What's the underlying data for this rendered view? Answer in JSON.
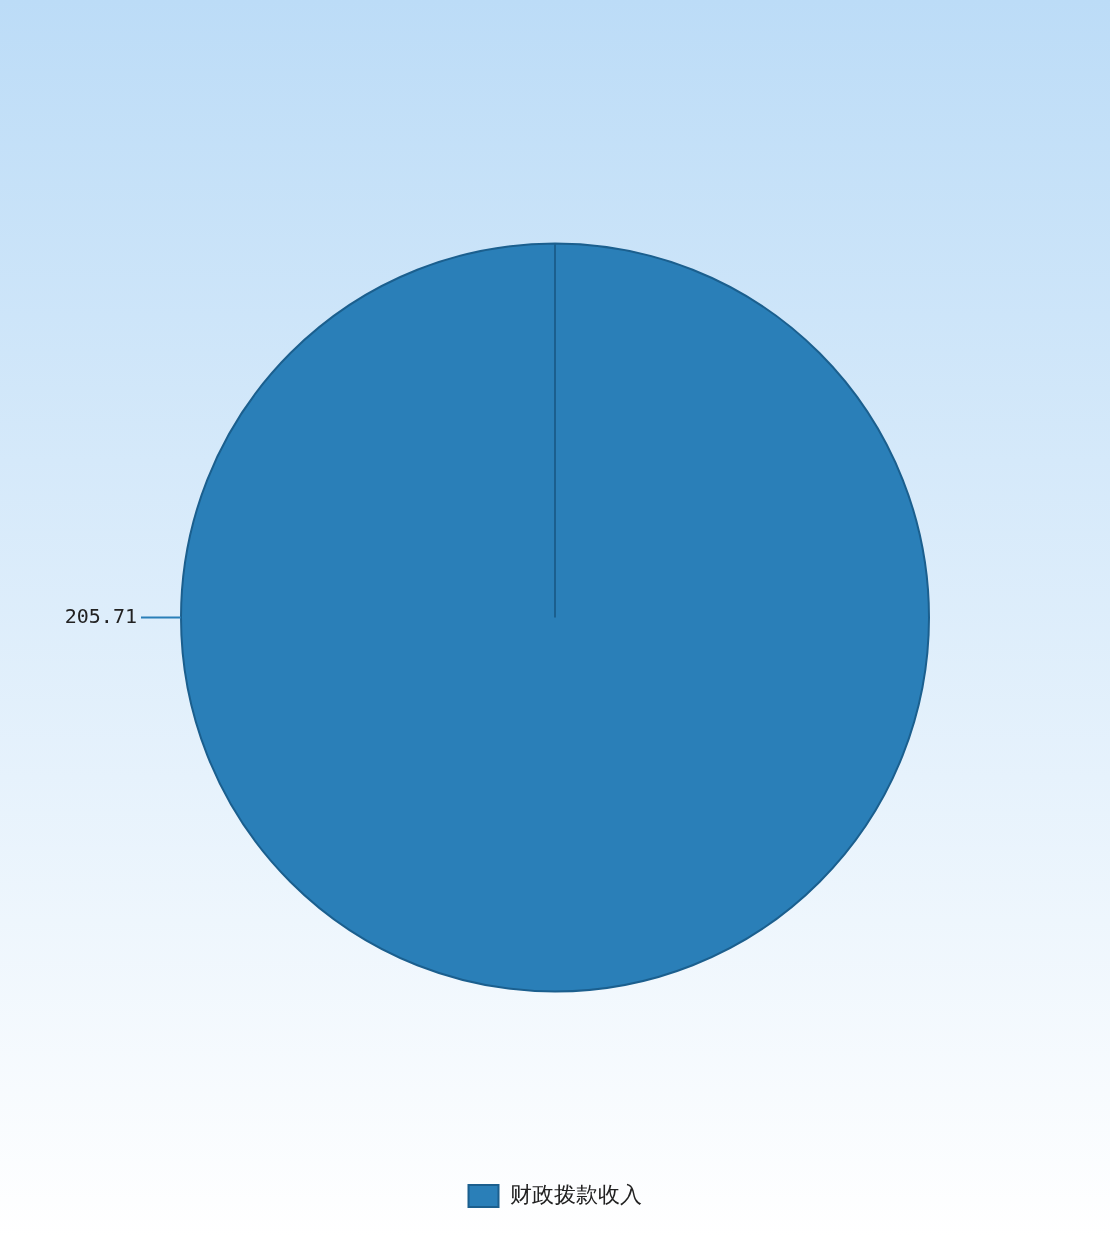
{
  "chart_data": {
    "type": "pie",
    "categories": [
      "财政拨款收入"
    ],
    "values": [
      205.71
    ],
    "colors": [
      "#2a7fb8"
    ],
    "data_labels": true,
    "legend": "bottom"
  }
}
